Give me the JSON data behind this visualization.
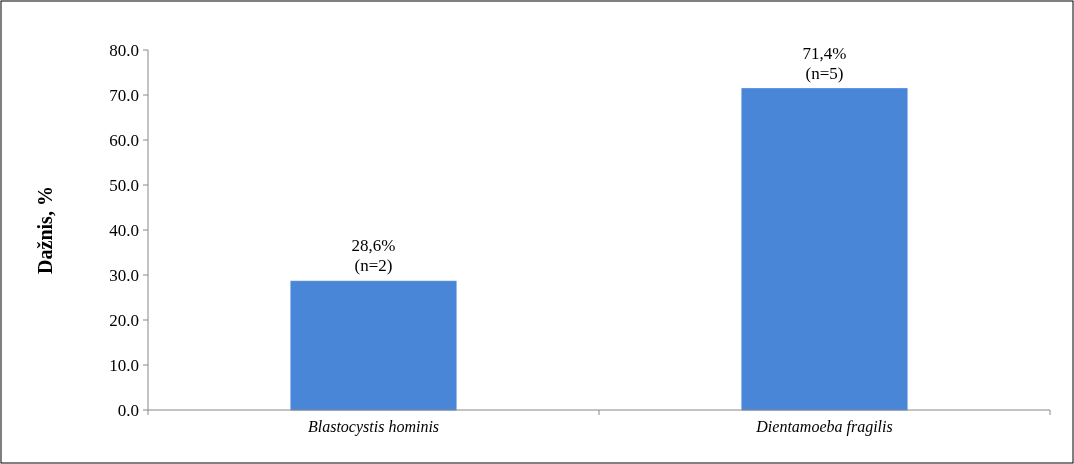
{
  "chart_data": {
    "type": "bar",
    "ylabel": "Dažnis, %",
    "categories": [
      "Blastocystis hominis",
      "Dientamoeba fragilis"
    ],
    "values": [
      28.6,
      71.4
    ],
    "color": "#4a86d8",
    "value_labels": [
      "28,6%\n(n=2)",
      "71,4%\n(n=5)"
    ],
    "ylim": [
      0,
      80
    ],
    "yticks": [
      {
        "value": 0,
        "label": "0.0"
      },
      {
        "value": 10,
        "label": "10.0"
      },
      {
        "value": 20,
        "label": "20.0"
      },
      {
        "value": 30,
        "label": "30.0"
      },
      {
        "value": 40,
        "label": "40.0"
      },
      {
        "value": 50,
        "label": "50.0"
      },
      {
        "value": 60,
        "label": "60.0"
      },
      {
        "value": 70,
        "label": "70.0"
      },
      {
        "value": 80,
        "label": "80.0"
      }
    ],
    "grid": false
  }
}
